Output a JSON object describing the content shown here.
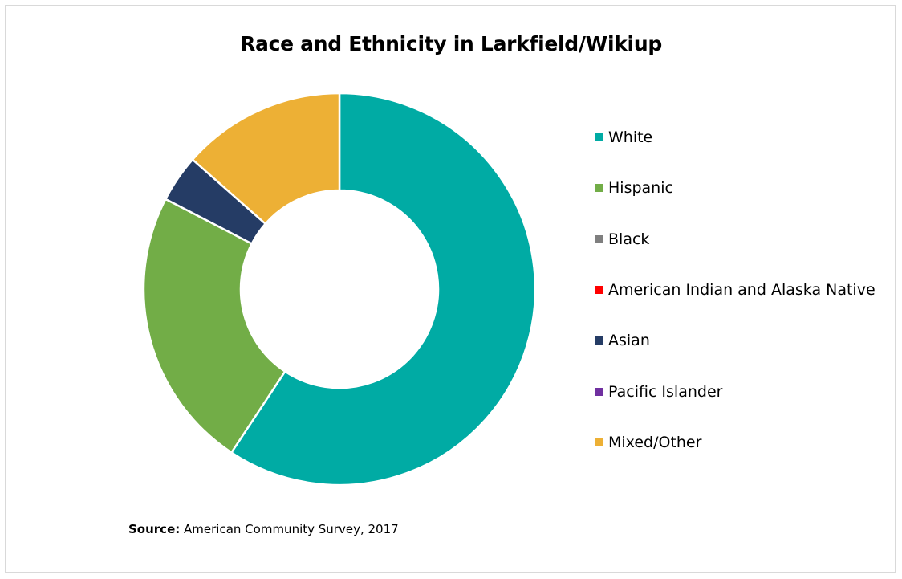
{
  "chart_data": {
    "type": "pie",
    "title": "Race and Ethnicity in Larkfield/Wikiup",
    "donut": true,
    "legend_position": "right",
    "categories": [
      "White",
      "Hispanic",
      "Black",
      "American Indian and Alaska Native",
      "Asian",
      "Pacific Islander",
      "Mixed/Other"
    ],
    "values": [
      59.3,
      23.3,
      0,
      0,
      3.9,
      0,
      13.5
    ],
    "colors": [
      "#00aba4",
      "#72ad47",
      "#7f7f7f",
      "#ff0000",
      "#253c65",
      "#7030a0",
      "#edb035"
    ],
    "source_label": "Source:",
    "source_text": "American Community Survey, 2017"
  }
}
